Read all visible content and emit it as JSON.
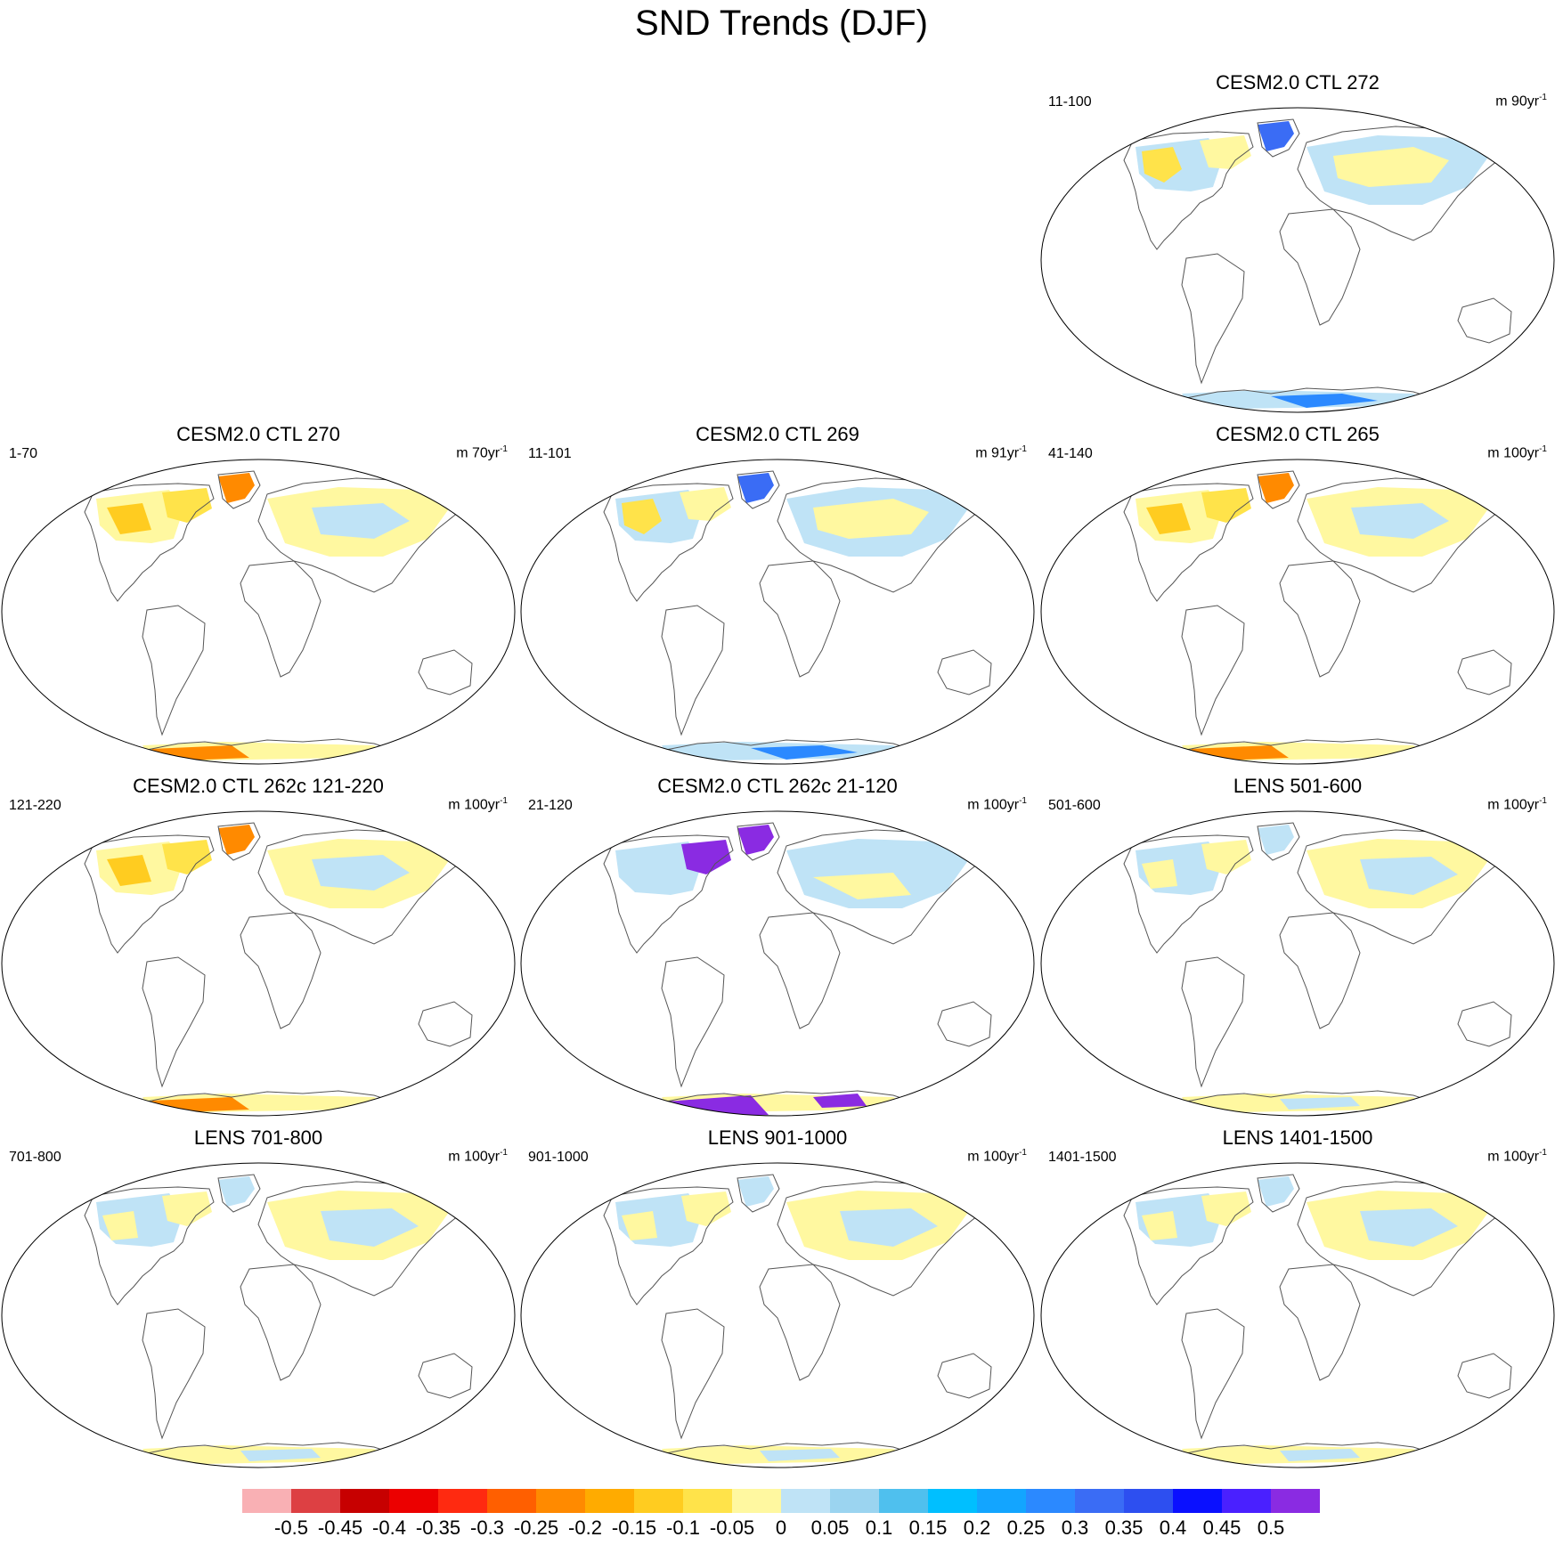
{
  "figure": {
    "title": "SND Trends (DJF)"
  },
  "panels": [
    {
      "title": "CESM2.0 CTL 272",
      "left_label": "11-100",
      "right_label": "m 90yr",
      "right_sup": "-1",
      "pattern": "mixed"
    },
    {
      "title": "CESM2.0 CTL 270",
      "left_label": "1-70",
      "right_label": "m 70yr",
      "right_sup": "-1",
      "pattern": "warm"
    },
    {
      "title": "CESM2.0 CTL 269",
      "left_label": "11-101",
      "right_label": "m 91yr",
      "right_sup": "-1",
      "pattern": "mixed"
    },
    {
      "title": "CESM2.0 CTL 265",
      "left_label": "41-140",
      "right_label": "m 100yr",
      "right_sup": "-1",
      "pattern": "warm"
    },
    {
      "title": "CESM2.0 CTL 262c 121-220",
      "left_label": "121-220",
      "right_label": "m 100yr",
      "right_sup": "-1",
      "pattern": "warm"
    },
    {
      "title": "CESM2.0 CTL 262c 21-120",
      "left_label": "21-120",
      "right_label": "m 100yr",
      "right_sup": "-1",
      "pattern": "purple"
    },
    {
      "title": "LENS 501-600",
      "left_label": "501-600",
      "right_label": "m 100yr",
      "right_sup": "-1",
      "pattern": "light"
    },
    {
      "title": "LENS 701-800",
      "left_label": "701-800",
      "right_label": "m 100yr",
      "right_sup": "-1",
      "pattern": "light"
    },
    {
      "title": "LENS 901-1000",
      "left_label": "901-1000",
      "right_label": "m 100yr",
      "right_sup": "-1",
      "pattern": "light"
    },
    {
      "title": "LENS 1401-1500",
      "left_label": "1401-1500",
      "right_label": "m 100yr",
      "right_sup": "-1",
      "pattern": "light"
    }
  ],
  "colorbar": {
    "colors": [
      "#f9b0b4",
      "#dd4043",
      "#c70000",
      "#ec0000",
      "#ff2a10",
      "#ff5f00",
      "#ff8a00",
      "#ffab00",
      "#ffcc20",
      "#ffe34a",
      "#fff8a0",
      "#bfe3f6",
      "#9bd4f0",
      "#4fc0ee",
      "#00bfff",
      "#13a5ff",
      "#2b89ff",
      "#3a6cf5",
      "#2d4ff0",
      "#0a10ff",
      "#4a20ff",
      "#8a2be2"
    ],
    "labels": [
      "-0.5",
      "-0.45",
      "-0.4",
      "-0.35",
      "-0.3",
      "-0.25",
      "-0.2",
      "-0.15",
      "-0.1",
      "-0.05",
      "0",
      "0.05",
      "0.1",
      "0.15",
      "0.2",
      "0.25",
      "0.3",
      "0.35",
      "0.4",
      "0.45",
      "0.5"
    ]
  }
}
